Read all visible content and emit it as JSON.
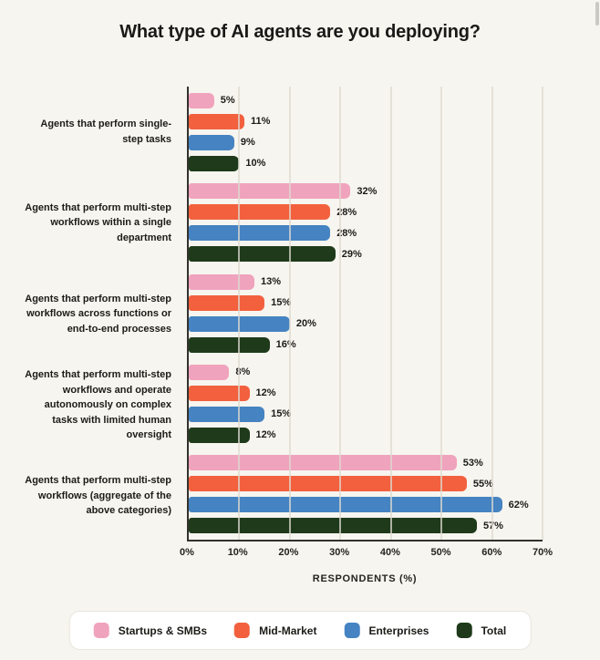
{
  "title": "What type of AI agents are you deploying?",
  "colors": {
    "background": "#F7F5EF",
    "axis": "#33322E",
    "gridline": "#DED9D0",
    "text": "#1C1B18",
    "legend_background": "#FFFFFF",
    "legend_border": "#E9E6DE"
  },
  "chart_data": {
    "type": "bar",
    "orientation": "horizontal",
    "title": "What type of AI agents are you deploying?",
    "xlabel": "RESPONDENTS (%)",
    "xlim": [
      0,
      70
    ],
    "x_ticks": [
      "0%",
      "10%",
      "20%",
      "30%",
      "40%",
      "50%",
      "60%",
      "70%"
    ],
    "grid": "vertical",
    "value_suffix": "%",
    "legend_position": "bottom",
    "categories": [
      "Agents that perform single-step tasks",
      "Agents that perform multi-step workflows within a single department",
      "Agents that perform multi-step workflows across functions or end-to-end processes",
      "Agents that perform multi-step workflows and operate autonomously on complex tasks with limited human oversight",
      "Agents that perform multi-step workflows (aggregate of the above categories)"
    ],
    "series": [
      {
        "name": "Startups & SMBs",
        "color": "#F0A3BD",
        "values": [
          5,
          32,
          13,
          8,
          53
        ]
      },
      {
        "name": "Mid-Market",
        "color": "#F2603E",
        "values": [
          11,
          28,
          15,
          12,
          55
        ]
      },
      {
        "name": "Enterprises",
        "color": "#4583C2",
        "values": [
          9,
          28,
          20,
          15,
          62
        ]
      },
      {
        "name": "Total",
        "color": "#1E3A1A",
        "values": [
          10,
          29,
          16,
          12,
          57
        ]
      }
    ]
  }
}
